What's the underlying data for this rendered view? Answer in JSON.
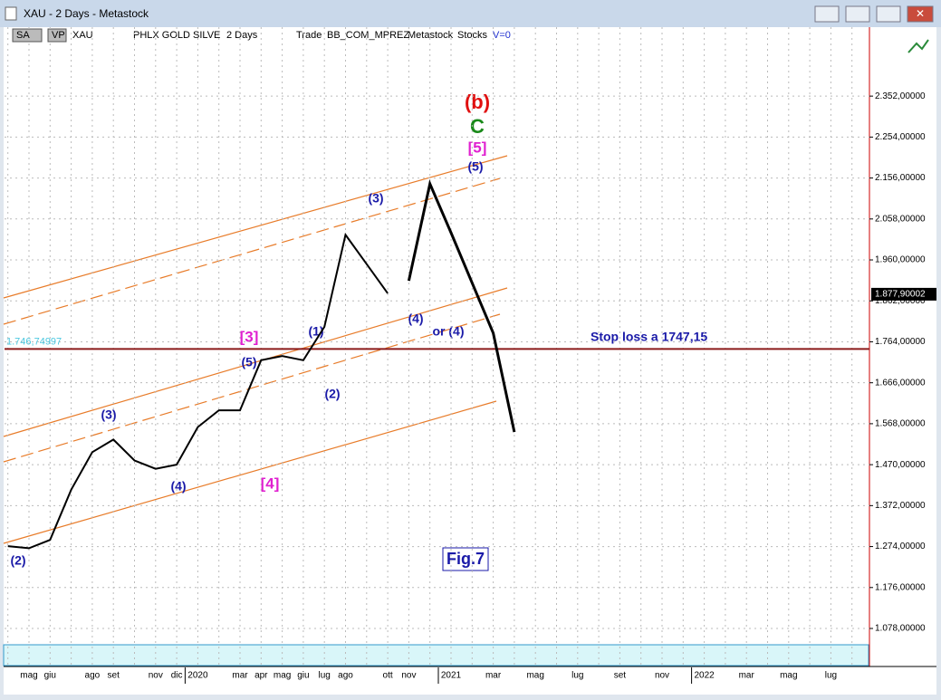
{
  "window_title": "XAU - 2 Days - Metastock",
  "toolbar": [
    "SA",
    "VP",
    "XAU",
    "PHLX GOLD SILVE",
    "2 Days",
    "Trade",
    "BB_COM_MPREZ",
    "Metastock",
    "Stocks",
    "V=0"
  ],
  "chart_data": {
    "type": "line",
    "categories": [
      null,
      "mag",
      "giu",
      null,
      "ago",
      "set",
      null,
      "nov",
      "dic",
      "2020",
      null,
      "mar",
      "apr",
      "mag",
      "giu",
      "lug",
      "ago",
      null,
      "ott",
      "nov",
      null,
      "2021",
      null,
      "mar",
      null,
      "mag",
      null,
      "lug",
      null,
      "set",
      null,
      "nov",
      null,
      "2022",
      null,
      "mar",
      null,
      "mag",
      null,
      "lug",
      null
    ],
    "series": [
      {
        "color": "#000000",
        "values": [
          1275,
          1270,
          1290,
          1410,
          1500,
          1530,
          1480,
          1460,
          1470,
          1560,
          1600,
          1600,
          1720,
          1730,
          1720,
          1800,
          2020,
          1950,
          1880,
          null,
          null,
          null,
          null,
          null,
          null,
          null,
          null,
          null,
          null,
          null,
          null,
          null,
          null,
          null,
          null,
          null,
          null,
          null,
          null,
          null,
          null
        ]
      },
      {
        "color": "#000000",
        "values": [
          null,
          null,
          null,
          null,
          null,
          null,
          null,
          null,
          null,
          null,
          null,
          null,
          null,
          null,
          null,
          null,
          null,
          null,
          null,
          1910,
          2142,
          2025,
          1905,
          1785,
          1548,
          null,
          null,
          null,
          null,
          null,
          null,
          null,
          null,
          null,
          null,
          null,
          null,
          null,
          null,
          null,
          null
        ]
      }
    ],
    "ylim": [
      987,
      2517
    ],
    "yticks": [
      {
        "value": 1078,
        "label": "1.078,00000"
      },
      {
        "value": 1176,
        "label": "1.176,00000"
      },
      {
        "value": 1274,
        "label": "1.274,00000"
      },
      {
        "value": 1372,
        "label": "1.372,00000"
      },
      {
        "value": 1470,
        "label": "1.470,00000"
      },
      {
        "value": 1568,
        "label": "1.568,00000"
      },
      {
        "value": 1666,
        "label": "1.666,00000"
      },
      {
        "value": 1764,
        "label": "1.764,00000"
      },
      {
        "value": 1862,
        "label": "1.862,00000"
      },
      {
        "value": 1960,
        "label": "1.960,00000"
      },
      {
        "value": 2058,
        "label": "2.058,00000"
      },
      {
        "value": 2156,
        "label": "2.156,00000"
      },
      {
        "value": 2254,
        "label": "2.254,00000"
      },
      {
        "value": 2352,
        "label": "2.352,00000"
      }
    ],
    "grid": true,
    "hline": {
      "value": 1746.74997,
      "label": "1.746,74997",
      "color": "#8b1a1a"
    },
    "last_value": {
      "value": 1877.90002,
      "label": "1.877,90002"
    },
    "annotations": [
      "(b)",
      "C",
      "[5]",
      "(5)",
      "(3)",
      "(4)",
      "or (4)",
      "(1)",
      "(2)",
      "[3]",
      "(5)",
      "(3)",
      "(4)",
      "[4]",
      "(2)",
      "Stop loss a 1747,15",
      "Fig.7"
    ]
  }
}
